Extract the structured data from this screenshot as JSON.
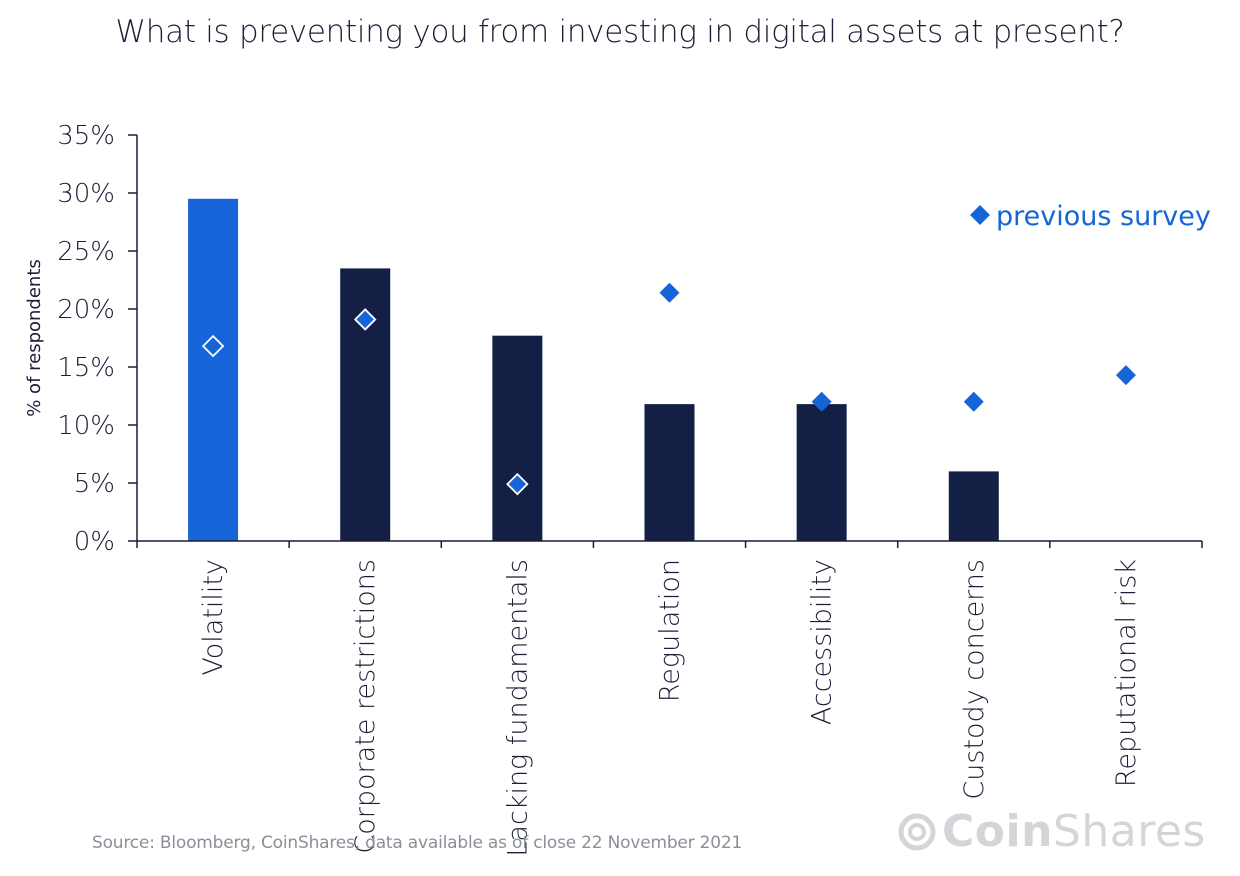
{
  "title": "What is preventing you from investing in digital assets at present?",
  "source": "Source: Bloomberg, CoinShares, data available as of close 22 November 2021",
  "logo": {
    "bold": "Coin",
    "light": "Shares"
  },
  "colors": {
    "highlight": "#1565d8",
    "bar": "#131f45",
    "marker": "#1565d8",
    "axis": "#1a1f36"
  },
  "chart_data": {
    "type": "bar",
    "categories": [
      "Volatility",
      "Corporate restrictions",
      "Lacking fundamentals",
      "Regulation",
      "Accessibility",
      "Custody concerns",
      "Reputational risk"
    ],
    "series": [
      {
        "values": [
          29.5,
          23.5,
          17.7,
          11.8,
          11.8,
          6.0,
          0
        ]
      },
      {
        "name": "previous survey",
        "values": [
          16.8,
          19.1,
          4.9,
          21.4,
          12.0,
          12.0,
          14.3
        ]
      }
    ],
    "ylabel": "% of respondents",
    "ylim": [
      0,
      35
    ],
    "yticks": [
      "0%",
      "5%",
      "10%",
      "15%",
      "20%",
      "25%",
      "30%",
      "35%"
    ],
    "legend": "top-right",
    "grid": false
  }
}
